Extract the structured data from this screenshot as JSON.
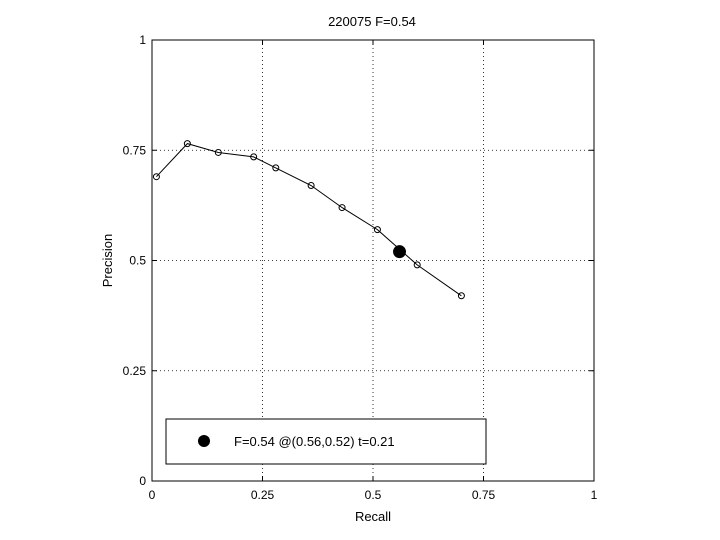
{
  "chart_data": {
    "type": "line",
    "title": "220075 F=0.54",
    "xlabel": "Recall",
    "ylabel": "Precision",
    "xlim": [
      0,
      1
    ],
    "ylim": [
      0,
      1
    ],
    "grid": true,
    "xticks": [
      0,
      0.25,
      0.5,
      0.75,
      1
    ],
    "xtick_labels": [
      "0",
      "0.25",
      "0.5",
      "0.75",
      "1"
    ],
    "yticks": [
      0,
      0.25,
      0.5,
      0.75,
      1
    ],
    "ytick_labels": [
      "0",
      "0.25",
      "0.5",
      "0.75",
      "1"
    ],
    "series": [
      {
        "marker": "open-circle",
        "color": "#000000",
        "x": [
          0.01,
          0.08,
          0.15,
          0.23,
          0.28,
          0.36,
          0.43,
          0.51,
          0.6,
          0.7
        ],
        "y": [
          0.69,
          0.765,
          0.745,
          0.735,
          0.71,
          0.67,
          0.62,
          0.57,
          0.49,
          0.42
        ]
      }
    ],
    "highlight_point": {
      "x": 0.56,
      "y": 0.52,
      "marker": "filled-circle",
      "color": "#000000"
    },
    "legend": {
      "position": "bottom-left",
      "entries": [
        {
          "label": "F=0.54 @(0.56,0.52) t=0.21",
          "marker": "filled-circle"
        }
      ]
    }
  }
}
